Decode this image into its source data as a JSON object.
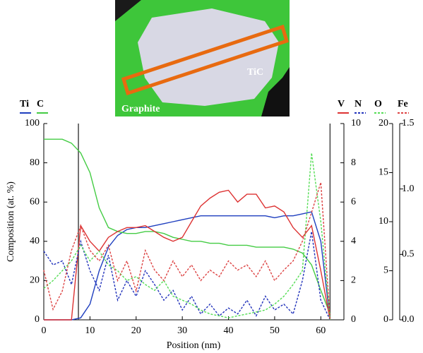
{
  "chart_data": {
    "type": "line",
    "xlabel": "Position (nm)",
    "ylabel": "Composition (at. %)",
    "annotations": [
      "TiC",
      "Graphite"
    ],
    "x": [
      0,
      2,
      4,
      6,
      8,
      10,
      12,
      14,
      16,
      18,
      20,
      22,
      24,
      26,
      28,
      30,
      32,
      34,
      36,
      38,
      40,
      42,
      44,
      46,
      48,
      50,
      52,
      54,
      56,
      58,
      60,
      62
    ],
    "xlim": [
      0,
      65
    ],
    "xticks": [
      0,
      10,
      20,
      30,
      40,
      50,
      60
    ],
    "ylim": [
      0,
      100
    ],
    "yticks": [
      0,
      20,
      40,
      60,
      80,
      100
    ],
    "y2lim": [
      0,
      10
    ],
    "y2ticks": [
      0,
      2,
      4,
      6,
      8,
      10
    ],
    "y3lim": [
      0,
      20
    ],
    "y3ticks": [
      0,
      5,
      10,
      15,
      20
    ],
    "y4lim": [
      0,
      1.5
    ],
    "y4ticks": [
      {
        "value": 0,
        "label": "0.0"
      },
      {
        "value": 0.5,
        "label": "0.5"
      },
      {
        "value": 1,
        "label": "1.0"
      },
      {
        "value": 1.5,
        "label": "1.5"
      }
    ],
    "vlines": [
      7.5,
      62
    ],
    "series": [
      {
        "name": "Ti",
        "color": "#1f3fbf",
        "dashed": false,
        "axis": "y",
        "values": [
          0,
          0,
          0,
          0,
          1,
          8,
          25,
          37,
          43,
          46,
          47,
          47,
          48,
          49,
          50,
          51,
          52,
          53,
          53,
          53,
          53,
          53,
          53,
          53,
          53,
          52,
          53,
          53,
          54,
          55,
          40,
          0
        ]
      },
      {
        "name": "C",
        "color": "#44cc44",
        "dashed": false,
        "axis": "y",
        "values": [
          92,
          92,
          92,
          90,
          85,
          75,
          57,
          47,
          45,
          44,
          44,
          45,
          45,
          44,
          42,
          41,
          40,
          40,
          39,
          39,
          38,
          38,
          38,
          37,
          37,
          37,
          37,
          36,
          34,
          28,
          15,
          3
        ]
      },
      {
        "name": "V",
        "color": "#dd3333",
        "dashed": false,
        "axis": "y2",
        "values": [
          0,
          0,
          0,
          0,
          4.8,
          4,
          3.5,
          4.2,
          4.5,
          4.7,
          4.7,
          4.8,
          4.5,
          4.2,
          4,
          4.2,
          5,
          5.8,
          6.2,
          6.5,
          6.6,
          6,
          6.4,
          6.4,
          5.7,
          5.8,
          5.5,
          4.7,
          4.2,
          4.8,
          2.5,
          0
        ]
      },
      {
        "name": "N",
        "color": "#2233bb",
        "dashed": true,
        "axis": "y2",
        "values": [
          3.5,
          2.8,
          3,
          1.8,
          4,
          2.5,
          1.5,
          3.3,
          1,
          2,
          1.2,
          2.5,
          1.8,
          1,
          1.5,
          0.5,
          1.2,
          0.3,
          0.8,
          0.2,
          0.6,
          0.3,
          1,
          0.2,
          1.2,
          0.5,
          0.8,
          0.3,
          2,
          4.5,
          1,
          0
        ]
      },
      {
        "name": "O",
        "color": "#55dd55",
        "dashed": true,
        "axis": "y3",
        "values": [
          3.2,
          4,
          5,
          6,
          7.6,
          6,
          7,
          5.6,
          5,
          4,
          4.4,
          3.6,
          3,
          4,
          2.4,
          2,
          1.6,
          1,
          0.6,
          0.4,
          0.2,
          0.4,
          0.6,
          0.8,
          1,
          1.6,
          2.4,
          3.6,
          5,
          17,
          10,
          0
        ]
      },
      {
        "name": "Fe",
        "color": "#dd4444",
        "dashed": true,
        "axis": "y4",
        "values": [
          0.38,
          0.08,
          0.22,
          0.53,
          0.72,
          0.53,
          0.45,
          0.57,
          0.3,
          0.45,
          0.22,
          0.53,
          0.38,
          0.3,
          0.45,
          0.33,
          0.42,
          0.3,
          0.38,
          0.33,
          0.45,
          0.38,
          0.42,
          0.33,
          0.45,
          0.3,
          0.38,
          0.45,
          0.6,
          0.82,
          1.05,
          0
        ]
      }
    ]
  }
}
